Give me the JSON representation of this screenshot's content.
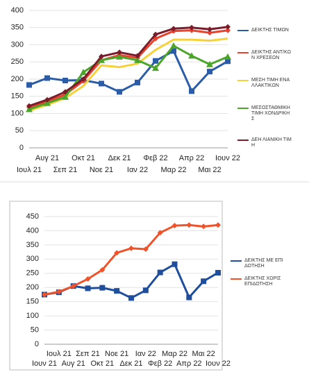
{
  "chart_data": [
    {
      "type": "line",
      "categories": [
        "Ιουλ 21",
        "Αυγ 21",
        "Σεπ 21",
        "Οκτ 21",
        "Νοε 21",
        "Δεκ 21",
        "Ιαν 22",
        "Φεβ 22",
        "Μαρ 22",
        "Απρ 22",
        "Μαι 22",
        "Ιουν 22"
      ],
      "ylim": [
        0,
        400
      ],
      "yticks": [
        0,
        50,
        100,
        150,
        200,
        250,
        300,
        350,
        400
      ],
      "grid": true,
      "legend": "right",
      "series": [
        {
          "name": "ΔΕΙΚΤΗΣ ΤΙΜΩΝ",
          "color": "#2a5ca8",
          "marker": "square",
          "values": [
            183,
            203,
            196,
            197,
            187,
            163,
            190,
            253,
            282,
            165,
            222,
            252
          ]
        },
        {
          "name": "ΔΕΙΚΤΗΣ ΑΝΤ/ΚΩΝ ΧΡΕΣΕΩΝ",
          "color": "#e8412c",
          "marker": "diamond",
          "values": [
            118,
            135,
            155,
            195,
            255,
            270,
            262,
            318,
            340,
            342,
            335,
            342
          ]
        },
        {
          "name": "ΜΕΣΗ ΤΙΜΗ ΕΝΑΛΛΑΚΤΙΚΩΝ",
          "color": "#f7d13a",
          "marker": "none",
          "values": [
            108,
            125,
            145,
            180,
            240,
            235,
            245,
            285,
            315,
            315,
            312,
            318
          ]
        },
        {
          "name": "ΜΕΣΟΣΤΑΘΜΙΚΗ ΤΙΜΗ ΧΟΝΔΡΙΚΗΣ",
          "color": "#4ca52b",
          "marker": "triangle",
          "values": [
            112,
            130,
            148,
            220,
            255,
            265,
            255,
            232,
            297,
            268,
            243,
            265
          ]
        },
        {
          "name": "ΔΕΗ ΛΙΑΝΙΚΗ ΤΙΜΗ",
          "color": "#7a1c2a",
          "marker": "diamond",
          "values": [
            122,
            140,
            163,
            200,
            266,
            278,
            268,
            330,
            347,
            350,
            345,
            352
          ]
        }
      ]
    },
    {
      "type": "line",
      "categories": [
        "Ιουν 21",
        "Ιουλ 21",
        "Αυγ 21",
        "Σεπ 21",
        "Οκτ 21",
        "Νοε 21",
        "Δεκ 21",
        "Ιαν 22",
        "Φεβ 22",
        "Μαρ 22",
        "Απρ 22",
        "Μαι 22",
        "Ιουν 22"
      ],
      "ylim": [
        0,
        450
      ],
      "yticks": [
        0,
        50,
        100,
        150,
        200,
        250,
        300,
        350,
        400,
        450
      ],
      "grid": true,
      "legend": "right",
      "series": [
        {
          "name": "ΔΕΙΚΤΗΣ ΜΕ ΕΠΙΔΟΤΗΣΗ",
          "color": "#1f4e9c",
          "marker": "square",
          "values": [
            175,
            183,
            205,
            197,
            199,
            188,
            163,
            190,
            253,
            282,
            165,
            222,
            252
          ]
        },
        {
          "name": "ΔΕΙΚΤΗΣ ΧΩΡΙΣ ΕΠΙΔΟΤΗΣΗ",
          "color": "#f0522a",
          "marker": "diamond",
          "values": [
            175,
            185,
            205,
            230,
            262,
            322,
            338,
            335,
            393,
            418,
            420,
            415,
            420
          ]
        }
      ]
    }
  ]
}
